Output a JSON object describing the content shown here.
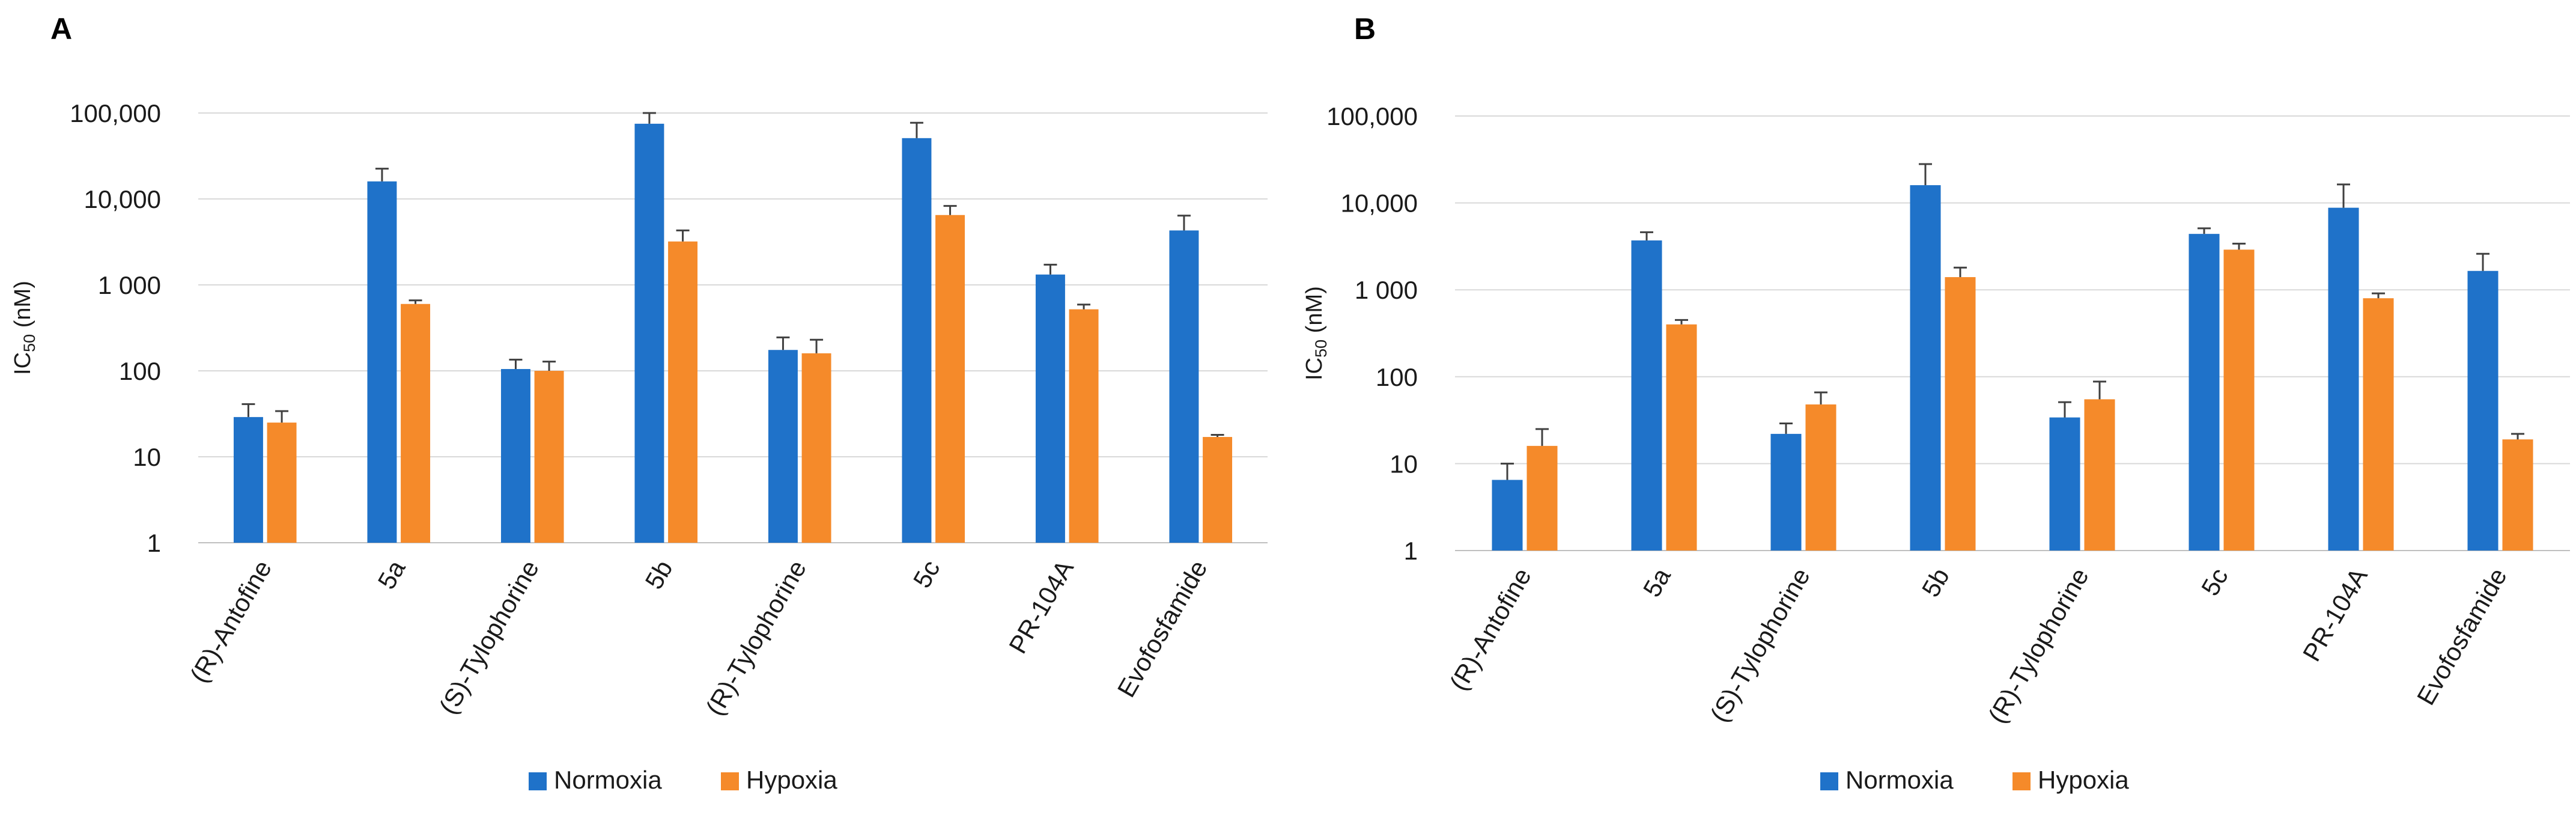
{
  "colors": {
    "Normoxia": "#1f72c9",
    "Hypoxia": "#f58a2a"
  },
  "chart_data": [
    {
      "type": "bar",
      "panel": "A",
      "ylabel": "IC50 (nM)",
      "ylabel_main": "IC",
      "ylabel_sub": "50",
      "ylabel_unit": " (nM)",
      "yscale": "log",
      "ylim": [
        1,
        100000
      ],
      "yticks": [
        1,
        10,
        100,
        1000,
        10000,
        100000
      ],
      "ytick_labels": [
        "1",
        "10",
        "100",
        "1 000",
        "10,000",
        "100,000"
      ],
      "grid": true,
      "legend": "bottom-center",
      "categories": [
        "(R)-Antofine",
        "5a",
        "(S)-Tylophorine",
        "5b",
        "(R)-Tylophorine",
        "5c",
        "PR-104A",
        "Evofosfamide"
      ],
      "series": [
        {
          "name": "Normoxia",
          "values": [
            29,
            16000,
            105,
            75000,
            175,
            51000,
            1320,
            4300
          ],
          "errors": [
            12,
            6500,
            30,
            25000,
            70,
            26000,
            400,
            2100
          ]
        },
        {
          "name": "Hypoxia",
          "values": [
            25,
            600,
            100,
            3200,
            160,
            6500,
            520,
            17
          ],
          "errors": [
            9,
            60,
            28,
            1100,
            70,
            1800,
            70,
            1
          ]
        }
      ]
    },
    {
      "type": "bar",
      "panel": "B",
      "ylabel": "IC50 (nM)",
      "ylabel_main": "IC",
      "ylabel_sub": "50",
      "ylabel_unit": " (nM)",
      "yscale": "log",
      "ylim": [
        1,
        100000
      ],
      "yticks": [
        1,
        10,
        100,
        1000,
        10000,
        100000
      ],
      "ytick_labels": [
        "1",
        "10",
        "100",
        "1 000",
        "10,000",
        "100,000"
      ],
      "grid": true,
      "legend": "bottom-center",
      "categories": [
        "(R)-Antofine",
        "5a",
        "(S)-Tylophorine",
        "5b",
        "(R)-Tylophorine",
        "5c",
        "PR-104A",
        "Evofosfamide"
      ],
      "series": [
        {
          "name": "Normoxia",
          "values": [
            6.5,
            3700,
            22,
            16000,
            34,
            4400,
            8800,
            1650
          ],
          "errors": [
            3.5,
            900,
            7,
            12000,
            17,
            700,
            7500,
            950
          ]
        },
        {
          "name": "Hypoxia",
          "values": [
            16,
            400,
            48,
            1400,
            55,
            2900,
            800,
            19
          ],
          "errors": [
            9,
            50,
            18,
            400,
            33,
            500,
            110,
            3
          ]
        }
      ]
    }
  ]
}
